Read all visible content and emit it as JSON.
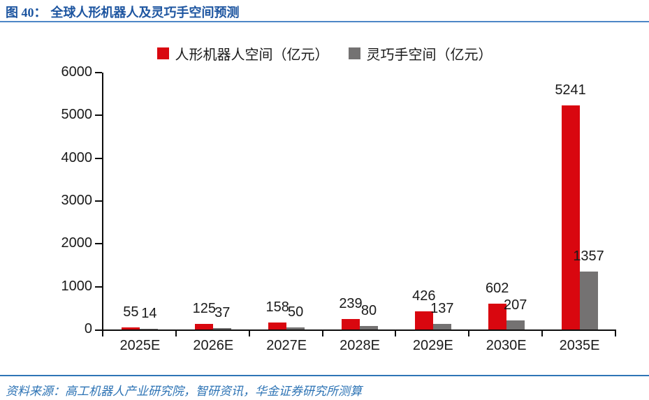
{
  "header": {
    "figure_label": "图 40：",
    "title": "全球人形机器人及灵巧手空间预测"
  },
  "footer": {
    "source": "资料来源：高工机器人产业研究院，智研资讯，华金证券研究所测算"
  },
  "colors": {
    "series_red": "#d9070f",
    "series_gray": "#747272",
    "title_blue": "#1d55a0",
    "rule_blue": "#4d86c6",
    "source_blue": "#2e74b5",
    "axis_black": "#0d0d0d"
  },
  "chart_data": {
    "type": "bar",
    "title": "",
    "xlabel": "",
    "ylabel": "",
    "categories": [
      "2025E",
      "2026E",
      "2027E",
      "2028E",
      "2029E",
      "2030E",
      "2035E"
    ],
    "series": [
      {
        "name": "人形机器人空间（亿元）",
        "color": "#d9070f",
        "values": [
          55,
          125,
          158,
          239,
          426,
          602,
          5241
        ]
      },
      {
        "name": "灵巧手空间（亿元）",
        "color": "#747272",
        "values": [
          14,
          37,
          50,
          80,
          137,
          207,
          1357
        ]
      }
    ],
    "ylim": [
      0,
      6000
    ],
    "yticks": [
      0,
      1000,
      2000,
      3000,
      4000,
      5000,
      6000
    ],
    "grid": false,
    "legend_position": "top",
    "data_labels": true
  }
}
